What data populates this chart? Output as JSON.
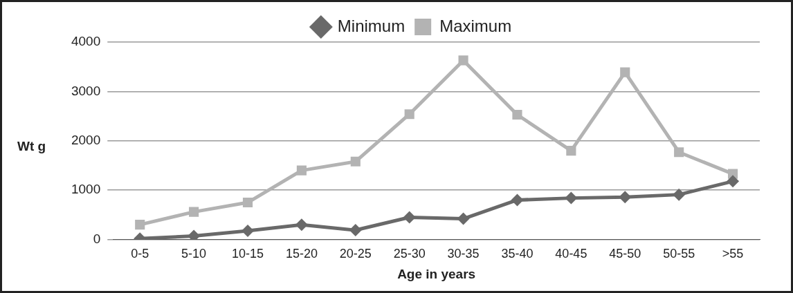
{
  "chart_data": {
    "type": "line",
    "xlabel": "Age in years",
    "ylabel": "Wt g",
    "categories": [
      "0-5",
      "5-10",
      "10-15",
      "15-20",
      "20-25",
      "25-30",
      "30-35",
      "35-40",
      "40-45",
      "45-50",
      "50-55",
      ">55"
    ],
    "series": [
      {
        "name": "Minimum",
        "color": "#696969",
        "marker": "diamond",
        "values": [
          20,
          70,
          175,
          300,
          190,
          450,
          420,
          800,
          840,
          860,
          910,
          1180
        ]
      },
      {
        "name": "Maximum",
        "color": "#b3b3b3",
        "marker": "square",
        "values": [
          300,
          560,
          750,
          1400,
          1580,
          2540,
          3630,
          2530,
          1800,
          3390,
          1770,
          1330
        ]
      }
    ],
    "ylim": [
      0,
      4000
    ],
    "yticks": [
      0,
      1000,
      2000,
      3000,
      4000
    ],
    "grid": "y",
    "legend": "top",
    "line_style": "solid"
  }
}
